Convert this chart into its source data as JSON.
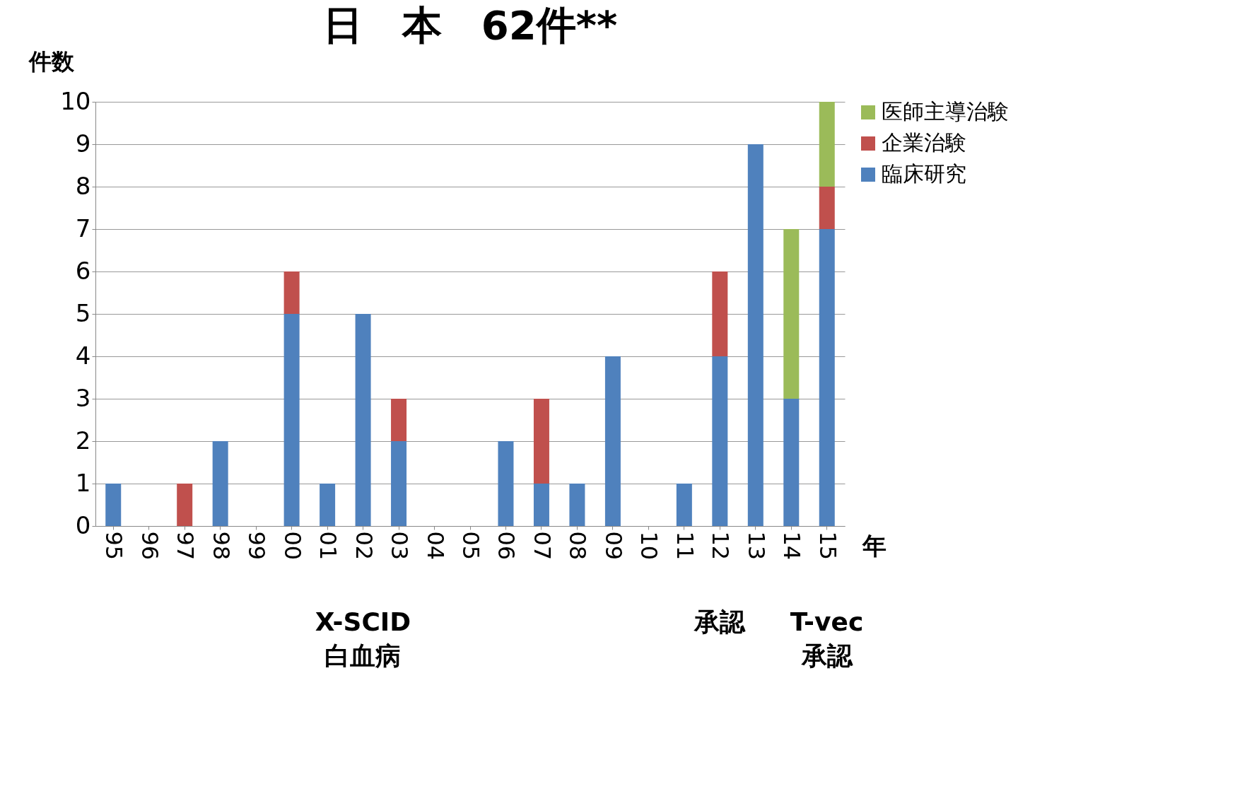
{
  "chart_data": {
    "type": "bar",
    "stacked": true,
    "title": "日　本　62件**",
    "ylabel": "件数",
    "xlabel": "年",
    "categories": [
      "95",
      "96",
      "97",
      "98",
      "99",
      "00",
      "01",
      "02",
      "03",
      "04",
      "05",
      "06",
      "07",
      "08",
      "09",
      "10",
      "11",
      "12",
      "13",
      "14",
      "15"
    ],
    "series": [
      {
        "name": "臨床研究",
        "color": "#4f81bd",
        "values": [
          1,
          0,
          0,
          2,
          0,
          5,
          1,
          5,
          2,
          0,
          0,
          2,
          1,
          1,
          4,
          0,
          1,
          4,
          9,
          3,
          7
        ]
      },
      {
        "name": "企業治験",
        "color": "#c0504d",
        "values": [
          0,
          0,
          1,
          0,
          0,
          1,
          0,
          0,
          1,
          0,
          0,
          0,
          2,
          0,
          0,
          0,
          0,
          2,
          0,
          0,
          1
        ]
      },
      {
        "name": "医師主導治験",
        "color": "#9bbb59",
        "values": [
          0,
          0,
          0,
          0,
          0,
          0,
          0,
          0,
          0,
          0,
          0,
          0,
          0,
          0,
          0,
          0,
          0,
          0,
          0,
          4,
          2
        ]
      }
    ],
    "ylim": [
      0,
      10
    ],
    "yticks": [
      0,
      1,
      2,
      3,
      4,
      5,
      6,
      7,
      8,
      9,
      10
    ],
    "grid": "y",
    "legend": "right",
    "annotations": [
      "X-SCID\n白血病",
      "承認",
      "T-vec\n承認"
    ]
  }
}
